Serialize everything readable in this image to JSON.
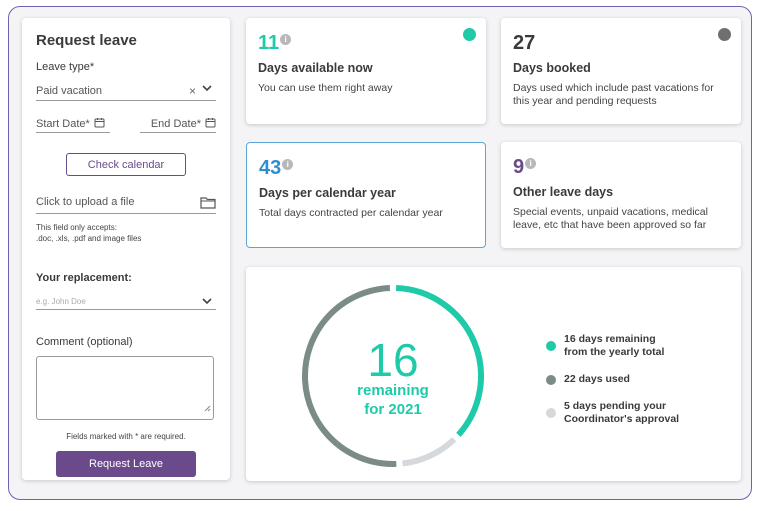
{
  "form": {
    "title": "Request leave",
    "leave_type_label": "Leave type*",
    "leave_type_value": "Paid vacation",
    "clear_symbol": "×",
    "start_date_label": "Start Date*",
    "end_date_label": "End Date*",
    "check_calendar_label": "Check calendar",
    "upload_label": "Click to upload a file",
    "upload_note_line1": "This field only accepts:",
    "upload_note_line2": ".doc, .xls, .pdf and image files",
    "replacement_label": "Your replacement:",
    "replacement_placeholder": "e.g. John Doe",
    "comment_label": "Comment (optional)",
    "required_note": "Fields marked with * are required.",
    "submit_label": "Request Leave"
  },
  "cards": {
    "available": {
      "number": "11",
      "title": "Days available now",
      "desc": "You can use them right away",
      "color": "#1fcaa9",
      "dot": "#1fcaa9"
    },
    "booked": {
      "number": "27",
      "title": "Days booked",
      "desc": "Days used which include past vacations for this year and pending requests",
      "color": "#3a3a3a",
      "dot": "#6f6f6f"
    },
    "per_year": {
      "number": "43",
      "title": "Days per calendar year",
      "desc": "Total days contracted per calendar year",
      "color": "#2f8ed0"
    },
    "other": {
      "number": "9",
      "title": "Other leave days",
      "desc": "Special events, unpaid vacations, medical leave, etc that have been approved so far",
      "color": "#6b4a8b"
    }
  },
  "info_glyph": "i",
  "summary": {
    "big_number": "16",
    "caption_line1": "remaining",
    "caption_line2": "for 2021",
    "legend": [
      {
        "line1": "16 days remaining",
        "line2": "from the yearly total",
        "color": "#1fcaa9",
        "value": 16
      },
      {
        "line1": "22 days used",
        "line2": "",
        "color": "#7b8c88",
        "value": 22
      },
      {
        "line1": "5 days pending your",
        "line2": "Coordinator's approval",
        "color": "#d5d9dc",
        "value": 5
      }
    ]
  }
}
